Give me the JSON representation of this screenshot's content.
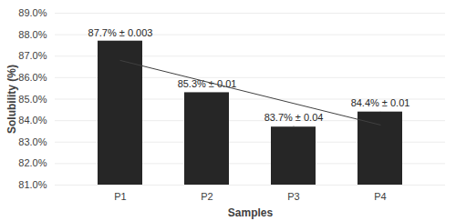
{
  "chart_data": {
    "type": "bar",
    "x_label": "Samples",
    "y_label": "Solubility (%)",
    "categories": [
      "P1",
      "P2",
      "P3",
      "P4"
    ],
    "series": [
      {
        "type": "bar",
        "color": "#262626",
        "values": [
          87.7,
          85.3,
          83.7,
          84.4
        ],
        "errors": [
          0.003,
          0.01,
          0.04,
          0.01
        ],
        "value_labels": [
          "87.7% ± 0.003",
          "85.3% ± 0.01",
          "83.7% ± 0.04",
          "84.4% ± 0.01"
        ]
      },
      {
        "type": "line",
        "color": "#404040",
        "values": [
          86.8,
          85.8,
          84.8,
          83.8
        ]
      }
    ],
    "ylim": [
      81,
      89
    ],
    "yticks": [
      {
        "value": 81,
        "label": "81.0%"
      },
      {
        "value": 82,
        "label": "82.0%"
      },
      {
        "value": 83,
        "label": "83.0%"
      },
      {
        "value": 84,
        "label": "84.0%"
      },
      {
        "value": 85,
        "label": "85.0%"
      },
      {
        "value": 86,
        "label": "86.0%"
      },
      {
        "value": 87,
        "label": "87.0%"
      },
      {
        "value": 88,
        "label": "88.0%"
      },
      {
        "value": 89,
        "label": "89.0%"
      }
    ],
    "grid": true,
    "data_labels": true
  }
}
